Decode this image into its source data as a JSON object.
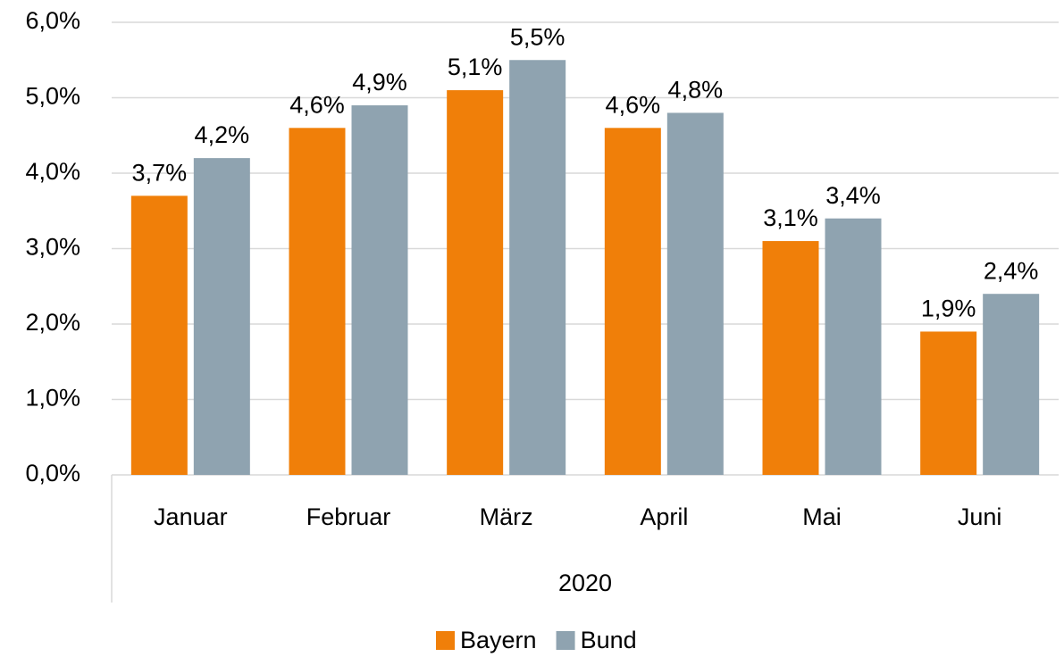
{
  "chart_data": {
    "type": "bar",
    "categories": [
      "Januar",
      "Februar",
      "März",
      "April",
      "Mai",
      "Juni"
    ],
    "x_label": "2020",
    "series": [
      {
        "name": "Bayern",
        "color": "#f07f09",
        "values": [
          3.7,
          4.6,
          5.1,
          4.6,
          3.1,
          1.9
        ],
        "value_labels": [
          "3,7%",
          "4,6%",
          "5,1%",
          "4,6%",
          "3,1%",
          "1,9%"
        ]
      },
      {
        "name": "Bund",
        "color": "#8fa3b0",
        "values": [
          4.2,
          4.9,
          5.5,
          4.8,
          3.4,
          2.4
        ],
        "value_labels": [
          "4,2%",
          "4,9%",
          "5,5%",
          "4,8%",
          "3,4%",
          "2,4%"
        ]
      }
    ],
    "ylim": [
      0,
      6
    ],
    "yticks": [
      {
        "value": 0,
        "label": "0,0%"
      },
      {
        "value": 1,
        "label": "1,0%"
      },
      {
        "value": 2,
        "label": "2,0%"
      },
      {
        "value": 3,
        "label": "3,0%"
      },
      {
        "value": 4,
        "label": "4,0%"
      },
      {
        "value": 5,
        "label": "5,0%"
      },
      {
        "value": 6,
        "label": "6,0%"
      }
    ],
    "grid": true,
    "legend": "bottom"
  }
}
